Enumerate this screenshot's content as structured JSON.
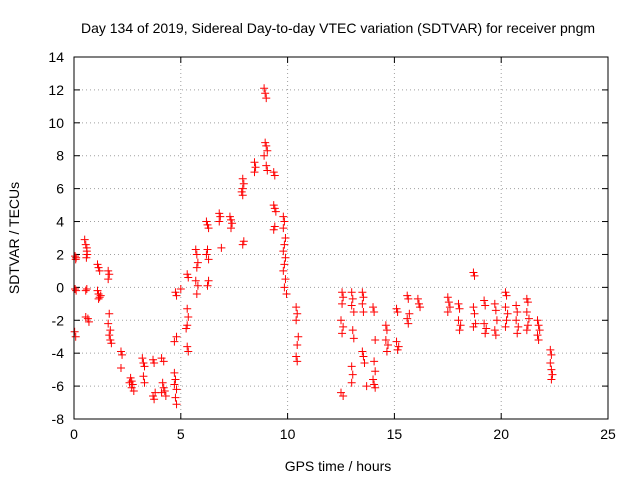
{
  "chart_data": {
    "type": "scatter",
    "title": "Day 134 of 2019, Sidereal Day-to-day VTEC variation (SDTVAR) for receiver pngm",
    "xlabel": "GPS time / hours",
    "ylabel": "SDTVAR / TECUs",
    "xlim": [
      0,
      25
    ],
    "ylim": [
      -8,
      14
    ],
    "xticks": [
      0,
      5,
      10,
      15,
      20,
      25
    ],
    "yticks": [
      -8,
      -6,
      -4,
      -2,
      0,
      2,
      4,
      6,
      8,
      10,
      12,
      14
    ],
    "xtick_labels": [
      "0",
      "5",
      "10",
      "15",
      "20",
      "25"
    ],
    "ytick_labels": [
      "-8",
      "-6",
      "-4",
      "-2",
      "0",
      "2",
      "4",
      "6",
      "8",
      "10",
      "12",
      "14"
    ],
    "grid": true,
    "marker": "plus",
    "color": "#ff0000",
    "series": [
      {
        "name": "SDTVAR",
        "points": [
          [
            0.05,
            1.9
          ],
          [
            0.08,
            1.7
          ],
          [
            0.1,
            1.8
          ],
          [
            0.05,
            -0.1
          ],
          [
            0.1,
            -0.2
          ],
          [
            0.03,
            -2.7
          ],
          [
            0.08,
            -3.0
          ],
          [
            0.5,
            2.9
          ],
          [
            0.55,
            2.6
          ],
          [
            0.6,
            2.4
          ],
          [
            0.6,
            2.2
          ],
          [
            0.62,
            2.0
          ],
          [
            0.58,
            1.8
          ],
          [
            0.55,
            -0.2
          ],
          [
            0.6,
            -0.1
          ],
          [
            0.55,
            -1.8
          ],
          [
            0.65,
            -1.9
          ],
          [
            0.7,
            -2.1
          ],
          [
            1.1,
            1.4
          ],
          [
            1.15,
            1.2
          ],
          [
            1.2,
            1.0
          ],
          [
            1.1,
            -0.2
          ],
          [
            1.15,
            -0.4
          ],
          [
            1.2,
            -0.6
          ],
          [
            1.25,
            -0.5
          ],
          [
            1.15,
            -0.7
          ],
          [
            1.6,
            1.0
          ],
          [
            1.65,
            0.8
          ],
          [
            1.6,
            0.5
          ],
          [
            1.65,
            -1.6
          ],
          [
            1.6,
            -2.2
          ],
          [
            1.7,
            -2.6
          ],
          [
            1.65,
            -2.9
          ],
          [
            1.7,
            -3.2
          ],
          [
            1.75,
            -3.4
          ],
          [
            2.2,
            -3.9
          ],
          [
            2.25,
            -4.1
          ],
          [
            2.2,
            -4.9
          ],
          [
            2.65,
            -5.5
          ],
          [
            2.7,
            -5.7
          ],
          [
            2.75,
            -5.9
          ],
          [
            2.7,
            -6.1
          ],
          [
            2.8,
            -6.3
          ],
          [
            2.6,
            -5.8
          ],
          [
            3.2,
            -4.3
          ],
          [
            3.25,
            -4.6
          ],
          [
            3.3,
            -4.8
          ],
          [
            3.25,
            -5.4
          ],
          [
            3.3,
            -5.8
          ],
          [
            3.7,
            -4.4
          ],
          [
            3.75,
            -4.6
          ],
          [
            3.8,
            -6.4
          ],
          [
            3.7,
            -6.6
          ],
          [
            3.75,
            -6.8
          ],
          [
            4.1,
            -4.3
          ],
          [
            4.2,
            -4.5
          ],
          [
            4.15,
            -5.8
          ],
          [
            4.2,
            -6.1
          ],
          [
            4.25,
            -6.3
          ],
          [
            4.3,
            -6.6
          ],
          [
            4.1,
            -6.4
          ],
          [
            4.7,
            -5.2
          ],
          [
            4.75,
            -5.6
          ],
          [
            4.7,
            -5.9
          ],
          [
            4.8,
            -6.2
          ],
          [
            4.75,
            -6.7
          ],
          [
            4.8,
            -7.1
          ],
          [
            4.8,
            -3.0
          ],
          [
            4.7,
            -3.3
          ],
          [
            4.75,
            -0.3
          ],
          [
            4.8,
            -0.5
          ],
          [
            5.0,
            -0.1
          ],
          [
            5.3,
            0.8
          ],
          [
            5.35,
            0.6
          ],
          [
            5.3,
            -1.3
          ],
          [
            5.35,
            -1.8
          ],
          [
            5.3,
            -2.3
          ],
          [
            5.25,
            -2.5
          ],
          [
            5.3,
            -3.6
          ],
          [
            5.35,
            -3.9
          ],
          [
            5.7,
            2.3
          ],
          [
            5.75,
            2.0
          ],
          [
            5.8,
            1.5
          ],
          [
            5.75,
            1.2
          ],
          [
            5.7,
            0.4
          ],
          [
            5.8,
            0.1
          ],
          [
            5.75,
            -0.4
          ],
          [
            6.2,
            4.0
          ],
          [
            6.25,
            3.8
          ],
          [
            6.3,
            3.6
          ],
          [
            6.25,
            2.3
          ],
          [
            6.2,
            2.0
          ],
          [
            6.3,
            1.7
          ],
          [
            6.3,
            0.4
          ],
          [
            6.25,
            0.1
          ],
          [
            6.8,
            4.5
          ],
          [
            6.85,
            4.3
          ],
          [
            6.8,
            4.0
          ],
          [
            6.9,
            2.4
          ],
          [
            7.3,
            4.3
          ],
          [
            7.35,
            4.1
          ],
          [
            7.4,
            3.9
          ],
          [
            7.35,
            3.6
          ],
          [
            7.9,
            6.6
          ],
          [
            7.95,
            6.3
          ],
          [
            7.9,
            6.0
          ],
          [
            7.85,
            5.8
          ],
          [
            7.9,
            5.6
          ],
          [
            7.95,
            2.8
          ],
          [
            7.9,
            2.6
          ],
          [
            8.45,
            7.6
          ],
          [
            8.5,
            7.3
          ],
          [
            8.45,
            7.0
          ],
          [
            8.9,
            12.1
          ],
          [
            8.95,
            11.8
          ],
          [
            9.0,
            11.5
          ],
          [
            8.95,
            8.8
          ],
          [
            9.0,
            8.6
          ],
          [
            9.05,
            8.3
          ],
          [
            8.9,
            8.0
          ],
          [
            9.0,
            7.4
          ],
          [
            9.05,
            7.1
          ],
          [
            9.35,
            7.0
          ],
          [
            9.4,
            6.8
          ],
          [
            9.35,
            5.0
          ],
          [
            9.4,
            4.8
          ],
          [
            9.45,
            4.6
          ],
          [
            9.4,
            3.7
          ],
          [
            9.35,
            3.5
          ],
          [
            9.8,
            4.3
          ],
          [
            9.85,
            4.0
          ],
          [
            9.8,
            3.6
          ],
          [
            9.9,
            3.0
          ],
          [
            9.85,
            2.6
          ],
          [
            9.8,
            2.2
          ],
          [
            9.9,
            1.8
          ],
          [
            9.85,
            1.4
          ],
          [
            9.8,
            1.0
          ],
          [
            9.9,
            0.5
          ],
          [
            9.85,
            0.0
          ],
          [
            9.95,
            -0.4
          ],
          [
            10.4,
            -1.2
          ],
          [
            10.45,
            -1.6
          ],
          [
            10.4,
            -2.0
          ],
          [
            10.5,
            -3.0
          ],
          [
            10.45,
            -3.5
          ],
          [
            10.4,
            -4.2
          ],
          [
            10.45,
            -4.5
          ],
          [
            12.55,
            -0.3
          ],
          [
            12.6,
            -0.6
          ],
          [
            12.55,
            -1.0
          ],
          [
            12.5,
            -2.0
          ],
          [
            12.6,
            -2.4
          ],
          [
            12.55,
            -2.8
          ],
          [
            12.5,
            -6.4
          ],
          [
            12.6,
            -6.6
          ],
          [
            13.0,
            -0.3
          ],
          [
            13.05,
            -0.7
          ],
          [
            13.0,
            -1.1
          ],
          [
            13.1,
            -1.5
          ],
          [
            13.05,
            -2.6
          ],
          [
            13.1,
            -3.1
          ],
          [
            13.0,
            -4.8
          ],
          [
            13.05,
            -5.3
          ],
          [
            13.0,
            -5.8
          ],
          [
            13.5,
            -0.3
          ],
          [
            13.55,
            -0.6
          ],
          [
            13.5,
            -1.0
          ],
          [
            13.55,
            -1.5
          ],
          [
            13.5,
            -3.9
          ],
          [
            13.55,
            -4.2
          ],
          [
            13.6,
            -4.6
          ],
          [
            13.7,
            -6.0
          ],
          [
            14.0,
            -1.2
          ],
          [
            14.05,
            -1.5
          ],
          [
            14.1,
            -3.2
          ],
          [
            14.05,
            -4.5
          ],
          [
            14.1,
            -5.1
          ],
          [
            14.0,
            -5.6
          ],
          [
            14.05,
            -5.9
          ],
          [
            14.1,
            -6.1
          ],
          [
            14.6,
            -2.3
          ],
          [
            14.65,
            -2.6
          ],
          [
            14.6,
            -3.2
          ],
          [
            14.7,
            -3.5
          ],
          [
            14.65,
            -3.9
          ],
          [
            15.1,
            -1.3
          ],
          [
            15.15,
            -1.5
          ],
          [
            15.1,
            -3.3
          ],
          [
            15.2,
            -3.6
          ],
          [
            15.15,
            -3.8
          ],
          [
            15.6,
            -0.5
          ],
          [
            15.65,
            -0.7
          ],
          [
            15.7,
            -1.6
          ],
          [
            15.6,
            -1.9
          ],
          [
            15.65,
            -2.2
          ],
          [
            16.1,
            -0.7
          ],
          [
            16.15,
            -1.0
          ],
          [
            16.2,
            -1.2
          ],
          [
            17.5,
            -0.6
          ],
          [
            17.55,
            -0.9
          ],
          [
            17.6,
            -1.2
          ],
          [
            17.5,
            -1.5
          ],
          [
            18.0,
            -1.0
          ],
          [
            18.05,
            -1.3
          ],
          [
            18.0,
            -2.0
          ],
          [
            18.1,
            -2.3
          ],
          [
            18.05,
            -2.6
          ],
          [
            18.7,
            0.9
          ],
          [
            18.75,
            0.7
          ],
          [
            18.7,
            -1.2
          ],
          [
            18.75,
            -1.6
          ],
          [
            18.8,
            -2.2
          ],
          [
            18.7,
            -2.4
          ],
          [
            19.2,
            -0.8
          ],
          [
            19.25,
            -1.1
          ],
          [
            19.2,
            -2.2
          ],
          [
            19.3,
            -2.5
          ],
          [
            19.25,
            -2.8
          ],
          [
            19.7,
            -1.0
          ],
          [
            19.75,
            -1.4
          ],
          [
            19.8,
            -2.0
          ],
          [
            19.7,
            -2.6
          ],
          [
            19.75,
            -2.9
          ],
          [
            20.2,
            -0.3
          ],
          [
            20.25,
            -0.5
          ],
          [
            20.2,
            -1.2
          ],
          [
            20.3,
            -1.6
          ],
          [
            20.25,
            -2.0
          ],
          [
            20.2,
            -2.4
          ],
          [
            20.7,
            -1.1
          ],
          [
            20.75,
            -1.5
          ],
          [
            20.7,
            -2.0
          ],
          [
            20.8,
            -2.4
          ],
          [
            20.75,
            -2.8
          ],
          [
            21.2,
            -0.7
          ],
          [
            21.25,
            -0.9
          ],
          [
            21.2,
            -1.5
          ],
          [
            21.3,
            -1.9
          ],
          [
            21.25,
            -2.3
          ],
          [
            21.2,
            -2.6
          ],
          [
            21.7,
            -2.0
          ],
          [
            21.75,
            -2.3
          ],
          [
            21.8,
            -2.6
          ],
          [
            21.7,
            -2.9
          ],
          [
            21.75,
            -3.2
          ],
          [
            22.3,
            -3.8
          ],
          [
            22.35,
            -4.1
          ],
          [
            22.3,
            -4.6
          ],
          [
            22.35,
            -5.0
          ],
          [
            22.4,
            -5.3
          ],
          [
            22.35,
            -5.6
          ]
        ]
      }
    ]
  }
}
